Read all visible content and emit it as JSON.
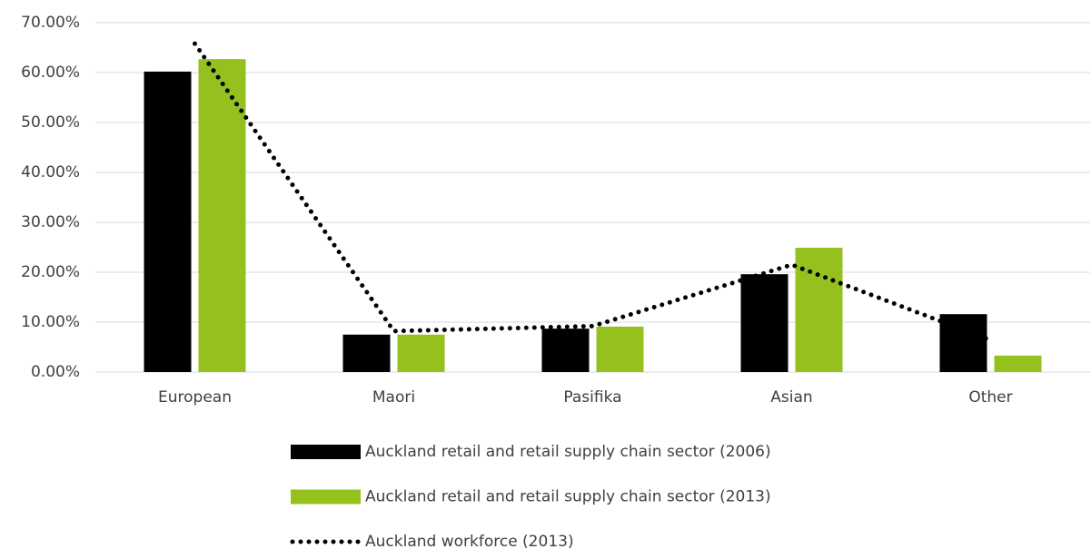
{
  "chart_data": {
    "type": "bar",
    "categories": [
      "European",
      "Maori",
      "Pasifika",
      "Asian",
      "Other"
    ],
    "series": [
      {
        "name": "Auckland retail and retail supply chain sector (2006)",
        "color": "#000000",
        "values": [
          60.2,
          7.5,
          8.7,
          19.6,
          11.6
        ]
      },
      {
        "name": "Auckland retail and retail supply chain sector (2013)",
        "color": "#95c11f",
        "values": [
          62.7,
          7.5,
          9.1,
          24.9,
          3.3
        ]
      },
      {
        "name": "Auckland workforce (2013)",
        "color": "#000000",
        "type": "line",
        "dotted": true,
        "values": [
          65.8,
          8.2,
          9.2,
          21.5,
          6.4
        ]
      }
    ],
    "ylim": [
      0,
      70
    ],
    "yticks": [
      {
        "value": 0,
        "label": "0.00%"
      },
      {
        "value": 10,
        "label": "10.00%"
      },
      {
        "value": 20,
        "label": "20.00%"
      },
      {
        "value": 30,
        "label": "30.00%"
      },
      {
        "value": 40,
        "label": "40.00%"
      },
      {
        "value": 50,
        "label": "50.00%"
      },
      {
        "value": 60,
        "label": "60.00%"
      },
      {
        "value": 70,
        "label": "70.00%"
      }
    ],
    "grid": true,
    "legend": "bottom"
  }
}
